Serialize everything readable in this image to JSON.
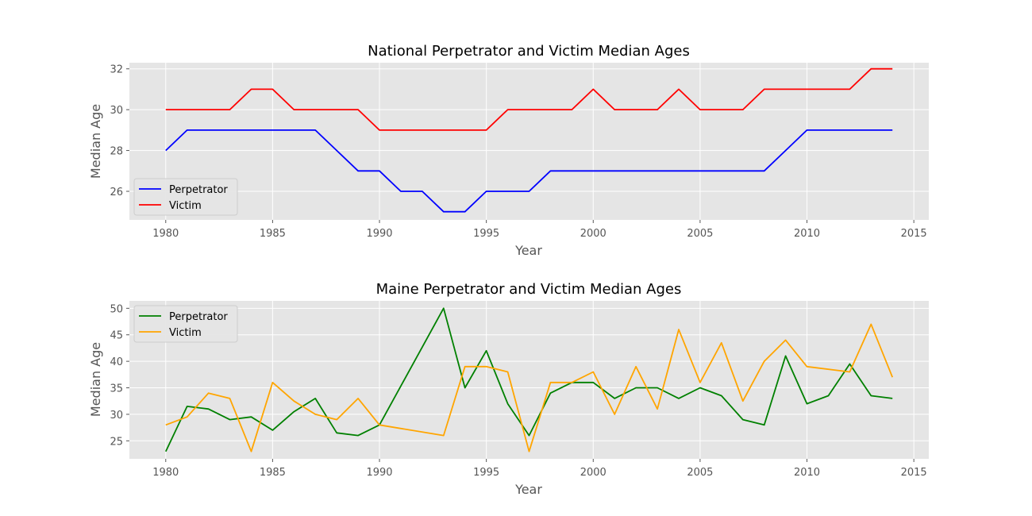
{
  "chart_data": [
    {
      "type": "line",
      "title": "National Perpetrator and Victim Median Ages",
      "xlabel": "Year",
      "ylabel": "Median Age",
      "xlim": [
        1978.3,
        2015.7
      ],
      "ylim": [
        24.6,
        32.3
      ],
      "xticks": [
        1980,
        1985,
        1990,
        1995,
        2000,
        2005,
        2010,
        2015
      ],
      "yticks": [
        26,
        28,
        30,
        32
      ],
      "grid": true,
      "legend": "lower-left",
      "x": [
        1980,
        1981,
        1982,
        1983,
        1984,
        1985,
        1986,
        1987,
        1988,
        1989,
        1990,
        1991,
        1992,
        1993,
        1994,
        1995,
        1996,
        1997,
        1998,
        1999,
        2000,
        2001,
        2002,
        2003,
        2004,
        2005,
        2006,
        2007,
        2008,
        2009,
        2010,
        2011,
        2012,
        2013,
        2014
      ],
      "series": [
        {
          "name": "Perpetrator",
          "color": "#0000ff",
          "values": [
            28,
            29,
            29,
            29,
            29,
            29,
            29,
            29,
            28,
            27,
            27,
            26,
            26,
            25,
            25,
            26,
            26,
            26,
            27,
            27,
            27,
            27,
            27,
            27,
            27,
            27,
            27,
            27,
            27,
            28,
            29,
            29,
            29,
            29,
            29
          ]
        },
        {
          "name": "Victim",
          "color": "#ff0000",
          "values": [
            30,
            30,
            30,
            30,
            31,
            31,
            30,
            30,
            30,
            30,
            29,
            29,
            29,
            29,
            29,
            29,
            30,
            30,
            30,
            30,
            31,
            30,
            30,
            30,
            31,
            30,
            30,
            30,
            31,
            31,
            31,
            31,
            31,
            32,
            32
          ]
        }
      ]
    },
    {
      "type": "line",
      "title": "Maine Perpetrator and Victim Median Ages",
      "xlabel": "Year",
      "ylabel": "Median Age",
      "xlim": [
        1978.3,
        2015.7
      ],
      "ylim": [
        21.6,
        51.4
      ],
      "xticks": [
        1980,
        1985,
        1990,
        1995,
        2000,
        2005,
        2010,
        2015
      ],
      "yticks": [
        25,
        30,
        35,
        40,
        45,
        50
      ],
      "grid": true,
      "legend": "upper-left",
      "series": [
        {
          "name": "Perpetrator",
          "color": "#008000",
          "x": [
            1980,
            1981,
            1982,
            1983,
            1984,
            1985,
            1986,
            1987,
            1988,
            1989,
            1990,
            1993,
            1994,
            1995,
            1996,
            1997,
            1998,
            1999,
            2000,
            2001,
            2002,
            2003,
            2004,
            2005,
            2006,
            2007,
            2008,
            2009,
            2010,
            2011,
            2012,
            2013,
            2014
          ],
          "values": [
            23,
            31.5,
            31,
            29,
            29.5,
            27,
            30.5,
            33,
            26.5,
            26,
            28,
            50,
            35,
            42,
            32,
            26,
            34,
            36,
            36,
            33,
            35,
            35,
            33,
            35,
            33.5,
            29,
            28,
            41,
            32,
            33.5,
            39.5,
            33.5,
            33
          ]
        },
        {
          "name": "Victim",
          "color": "#ffa500",
          "x": [
            1980,
            1981,
            1982,
            1983,
            1984,
            1985,
            1986,
            1987,
            1988,
            1989,
            1990,
            1993,
            1994,
            1995,
            1996,
            1997,
            1998,
            1999,
            2000,
            2001,
            2002,
            2003,
            2004,
            2005,
            2006,
            2007,
            2008,
            2009,
            2010,
            2012,
            2013,
            2014
          ],
          "values": [
            28,
            29.5,
            34,
            33,
            23,
            36,
            32.5,
            30,
            29,
            33,
            28,
            26,
            39,
            39,
            38,
            23,
            36,
            36,
            38,
            30,
            39,
            31,
            46,
            36,
            43.5,
            32.5,
            40,
            44,
            39,
            38,
            47,
            37
          ]
        }
      ]
    }
  ]
}
